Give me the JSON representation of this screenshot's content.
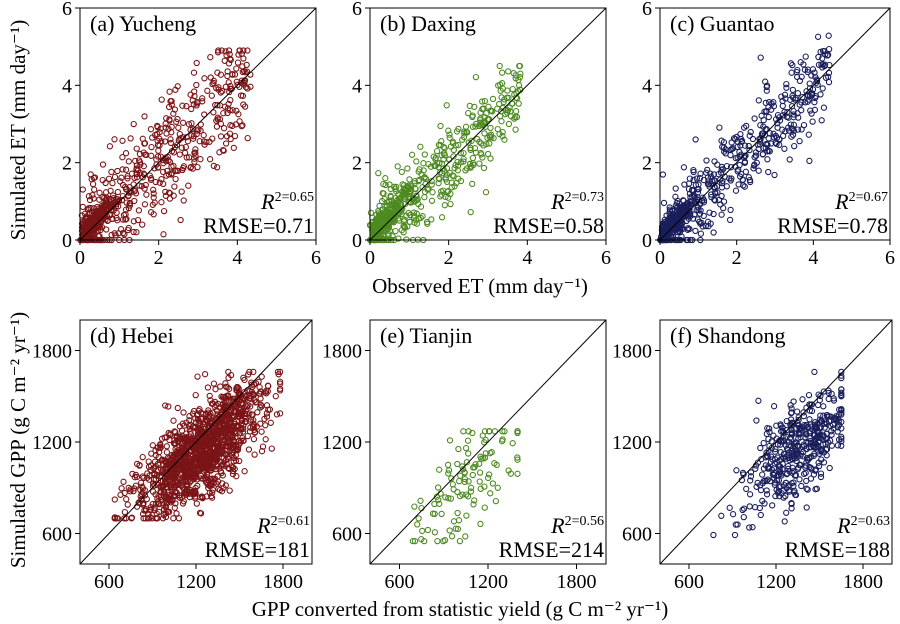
{
  "figure": {
    "ylabel_top": "Simulated ET (mm day⁻¹)",
    "xlabel_top": "Observed ET (mm day⁻¹)",
    "ylabel_bottom": "Simulated GPP (g C m⁻² yr⁻¹)",
    "xlabel_bottom": "GPP converted from statistic yield (g C m⁻² yr⁻¹)"
  },
  "colors": {
    "red": "#7b1416",
    "green": "#4d8a21",
    "navy": "#1a1f5c"
  },
  "chart_data": [
    {
      "type": "scatter",
      "id": "a",
      "label": "(a) Yucheng",
      "site": "Yucheng",
      "color": "#7b1416",
      "r2_symbol": "R",
      "r2": "2=0.65",
      "rmse": "RMSE=0.71",
      "xlim": [
        0,
        6
      ],
      "ylim": [
        0,
        6
      ],
      "xticks": [
        "0",
        "2",
        "4",
        "6"
      ],
      "yticks": [
        "0",
        "2",
        "4",
        "6"
      ],
      "tick_values": [
        0,
        2,
        4,
        6
      ],
      "one_to_one_line": true,
      "n_points": 700,
      "point_range_x": [
        0,
        5.1
      ],
      "point_range_y": [
        0,
        4.9
      ]
    },
    {
      "type": "scatter",
      "id": "b",
      "label": "(b) Daxing",
      "site": "Daxing",
      "color": "#4d8a21",
      "r2_symbol": "R",
      "r2": "2=0.73",
      "rmse": "RMSE=0.58",
      "xlim": [
        0,
        6
      ],
      "ylim": [
        0,
        6
      ],
      "xticks": [
        "0",
        "2",
        "4",
        "6"
      ],
      "yticks": [
        "0",
        "2",
        "4",
        "6"
      ],
      "tick_values": [
        0,
        2,
        4,
        6
      ],
      "one_to_one_line": true,
      "n_points": 600,
      "point_range_x": [
        0,
        4.5
      ],
      "point_range_y": [
        0,
        4.5
      ]
    },
    {
      "type": "scatter",
      "id": "c",
      "label": "(c) Guantao",
      "site": "Guantao",
      "color": "#1a1f5c",
      "r2_symbol": "R",
      "r2": "2=0.67",
      "rmse": "RMSE=0.78",
      "xlim": [
        0,
        6
      ],
      "ylim": [
        0,
        6
      ],
      "xticks": [
        "0",
        "2",
        "4",
        "6"
      ],
      "yticks": [
        "0",
        "2",
        "4",
        "6"
      ],
      "tick_values": [
        0,
        2,
        4,
        6
      ],
      "one_to_one_line": true,
      "n_points": 650,
      "point_range_x": [
        0,
        5.2
      ],
      "point_range_y": [
        0,
        5.5
      ]
    },
    {
      "type": "scatter",
      "id": "d",
      "label": "(d) Hebei",
      "site": "Hebei",
      "color": "#7b1416",
      "r2_symbol": "R",
      "r2": "2=0.61",
      "rmse": "RMSE=181",
      "xlim": [
        400,
        2000
      ],
      "ylim": [
        400,
        2000
      ],
      "xticks": [
        "600",
        "1200",
        "1800"
      ],
      "yticks": [
        "600",
        "1200",
        "1800"
      ],
      "tick_values": [
        600,
        1200,
        1800
      ],
      "one_to_one_line": true,
      "n_points": 1300,
      "point_range_x": [
        640,
        1780
      ],
      "point_range_y": [
        700,
        1660
      ]
    },
    {
      "type": "scatter",
      "id": "e",
      "label": "(e) Tianjin",
      "site": "Tianjin",
      "color": "#4d8a21",
      "r2_symbol": "R",
      "r2": "2=0.56",
      "rmse": "RMSE=214",
      "xlim": [
        400,
        2000
      ],
      "ylim": [
        400,
        2000
      ],
      "xticks": [
        "600",
        "1200",
        "1800"
      ],
      "yticks": [
        "600",
        "1200",
        "1800"
      ],
      "tick_values": [
        600,
        1200,
        1800
      ],
      "one_to_one_line": true,
      "n_points": 120,
      "point_range_x": [
        560,
        1400
      ],
      "point_range_y": [
        550,
        1270
      ]
    },
    {
      "type": "scatter",
      "id": "f",
      "label": "(f) Shandong",
      "site": "Shandong",
      "color": "#1a1f5c",
      "r2_symbol": "R",
      "r2": "2=0.63",
      "rmse": "RMSE=188",
      "xlim": [
        400,
        2000
      ],
      "ylim": [
        400,
        2000
      ],
      "xticks": [
        "600",
        "1200",
        "1800"
      ],
      "yticks": [
        "600",
        "1200",
        "1800"
      ],
      "tick_values": [
        600,
        1200,
        1800
      ],
      "one_to_one_line": true,
      "n_points": 450,
      "point_range_x": [
        600,
        1650
      ],
      "point_range_y": [
        590,
        1660
      ]
    }
  ]
}
